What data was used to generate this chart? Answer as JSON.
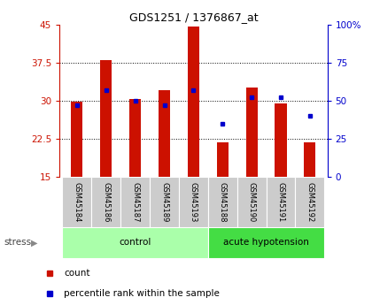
{
  "title": "GDS1251 / 1376867_at",
  "samples": [
    "GSM45184",
    "GSM45186",
    "GSM45187",
    "GSM45189",
    "GSM45193",
    "GSM45188",
    "GSM45190",
    "GSM45191",
    "GSM45192"
  ],
  "count_values": [
    29.8,
    38.0,
    30.4,
    32.0,
    44.5,
    21.8,
    32.5,
    29.5,
    21.8
  ],
  "percentile_values": [
    47,
    57,
    50,
    47,
    57,
    35,
    52,
    52,
    40
  ],
  "baseline": 15,
  "ylim_left": [
    15,
    45
  ],
  "ylim_right": [
    0,
    100
  ],
  "yticks_left": [
    15,
    22.5,
    30,
    37.5,
    45
  ],
  "ytick_labels_left": [
    "15",
    "22.5",
    "30",
    "37.5",
    "45"
  ],
  "yticks_right": [
    0,
    25,
    50,
    75,
    100
  ],
  "ytick_labels_right": [
    "0",
    "25",
    "50",
    "75",
    "100%"
  ],
  "groups": [
    {
      "name": "control",
      "indices": [
        0,
        1,
        2,
        3,
        4
      ],
      "color": "#aaffaa"
    },
    {
      "name": "acute hypotension",
      "indices": [
        5,
        6,
        7,
        8
      ],
      "color": "#44dd44"
    }
  ],
  "group_label": "stress",
  "bar_color": "#cc1100",
  "dot_color": "#0000cc",
  "bar_width": 0.4,
  "tick_bg_color": "#cccccc",
  "grid_color": "#000000",
  "title_color": "#000000",
  "left_tick_color": "#cc1100",
  "right_tick_color": "#0000cc"
}
